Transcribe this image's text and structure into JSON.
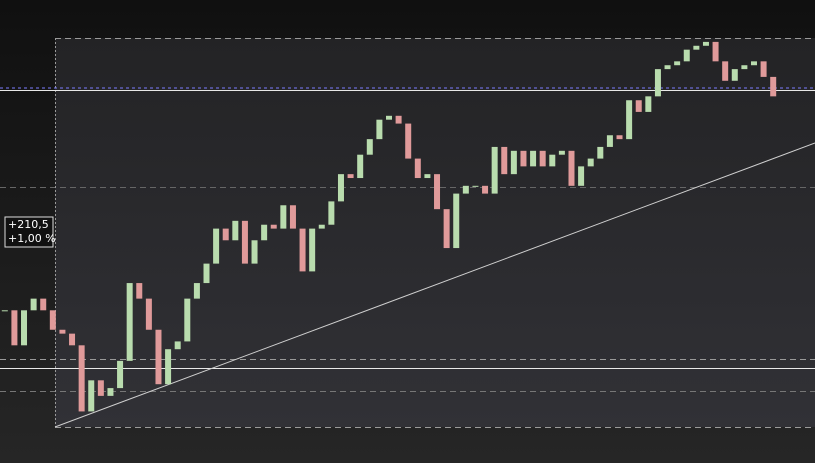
{
  "chart_data": {
    "type": "candlestick",
    "annotations": [
      "+210,5",
      "+1,00 %"
    ],
    "close": [
      30,
      21,
      30,
      33,
      30,
      25,
      24,
      21,
      4,
      12,
      8,
      10,
      17,
      37,
      33,
      25,
      11,
      20,
      22,
      33,
      37,
      42,
      51,
      48,
      53,
      42,
      48,
      52,
      51,
      57,
      51,
      40,
      51,
      52,
      58,
      65,
      64,
      70,
      74,
      79,
      80,
      78,
      69,
      64,
      65,
      56,
      46,
      60,
      62,
      62,
      60,
      72,
      65,
      71,
      67,
      71,
      67,
      70,
      71,
      62,
      67,
      69,
      72,
      75,
      74,
      84,
      81,
      85,
      92,
      93,
      94,
      97,
      98,
      99,
      94,
      89,
      92,
      93,
      94,
      90,
      85
    ],
    "up_color": "#b9dcae",
    "down_color": "#e09a9a",
    "ylim": [
      0,
      100
    ]
  }
}
